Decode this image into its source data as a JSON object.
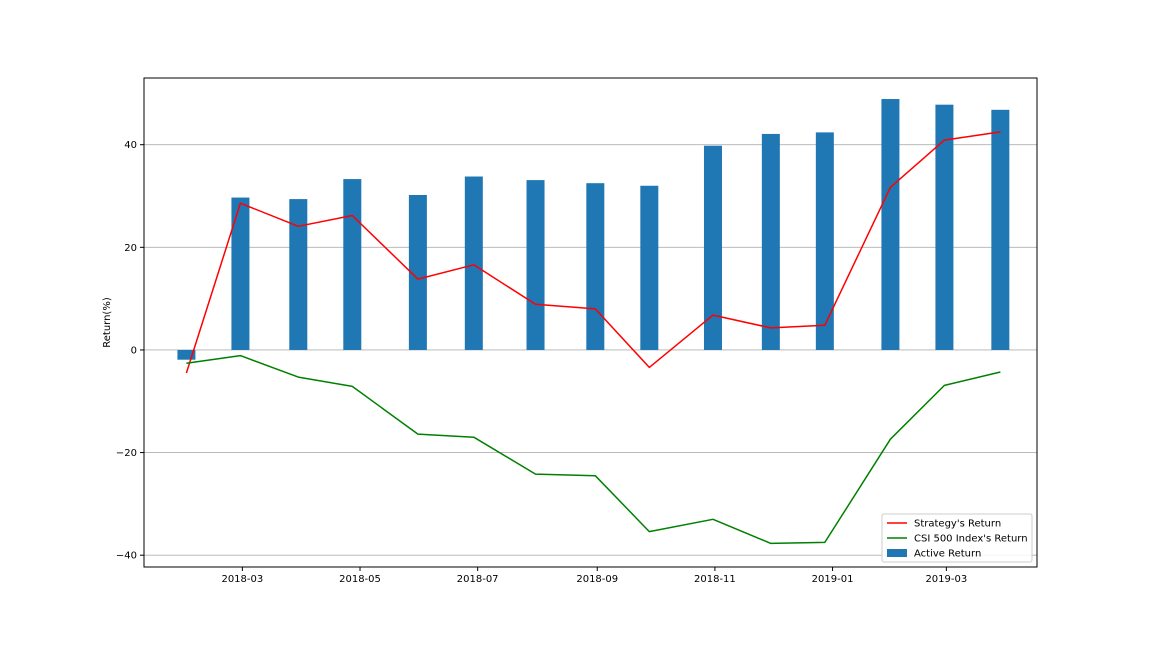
{
  "chart_data": {
    "type": "bar",
    "title": "",
    "xlabel": "",
    "ylabel": "Return(%)",
    "ylim": [
      -42.3,
      53.0
    ],
    "xlim": [
      "2018-01-09",
      "2019-04-17"
    ],
    "yticks": [
      -40,
      -20,
      0,
      20,
      40
    ],
    "xticks": [
      {
        "date": "2018-03-01",
        "label": "2018-03"
      },
      {
        "date": "2018-05-01",
        "label": "2018-05"
      },
      {
        "date": "2018-07-01",
        "label": "2018-07"
      },
      {
        "date": "2018-09-01",
        "label": "2018-09"
      },
      {
        "date": "2018-11-01",
        "label": "2018-11"
      },
      {
        "date": "2019-01-01",
        "label": "2019-01"
      },
      {
        "date": "2019-03-01",
        "label": "2019-03"
      }
    ],
    "grid": "horizontal",
    "legend_position": "lower-right",
    "x": [
      "2018-01-31",
      "2018-02-28",
      "2018-03-30",
      "2018-04-27",
      "2018-05-31",
      "2018-06-29",
      "2018-07-31",
      "2018-08-31",
      "2018-09-28",
      "2018-10-31",
      "2018-11-30",
      "2018-12-28",
      "2019-01-31",
      "2019-02-28",
      "2019-03-29"
    ],
    "series": [
      {
        "name": "Strategy's Return",
        "kind": "line",
        "color": "#ff0000",
        "values": [
          -4.5,
          28.6,
          24.1,
          26.2,
          13.8,
          16.6,
          8.9,
          8.0,
          -3.4,
          6.8,
          4.3,
          4.8,
          31.7,
          40.9,
          42.5
        ]
      },
      {
        "name": "CSI 500 Index's Return",
        "kind": "line",
        "color": "#008000",
        "values": [
          -2.6,
          -1.1,
          -5.3,
          -7.1,
          -16.4,
          -17.0,
          -24.2,
          -24.5,
          -35.4,
          -33.0,
          -37.7,
          -37.5,
          -17.4,
          -6.9,
          -4.3
        ]
      },
      {
        "name": "Active Return",
        "kind": "bar",
        "color": "#1f77b4",
        "values": [
          -1.9,
          29.7,
          29.4,
          33.3,
          30.2,
          33.8,
          33.1,
          32.5,
          32.0,
          39.8,
          42.1,
          42.4,
          48.9,
          47.8,
          46.8
        ]
      }
    ]
  }
}
